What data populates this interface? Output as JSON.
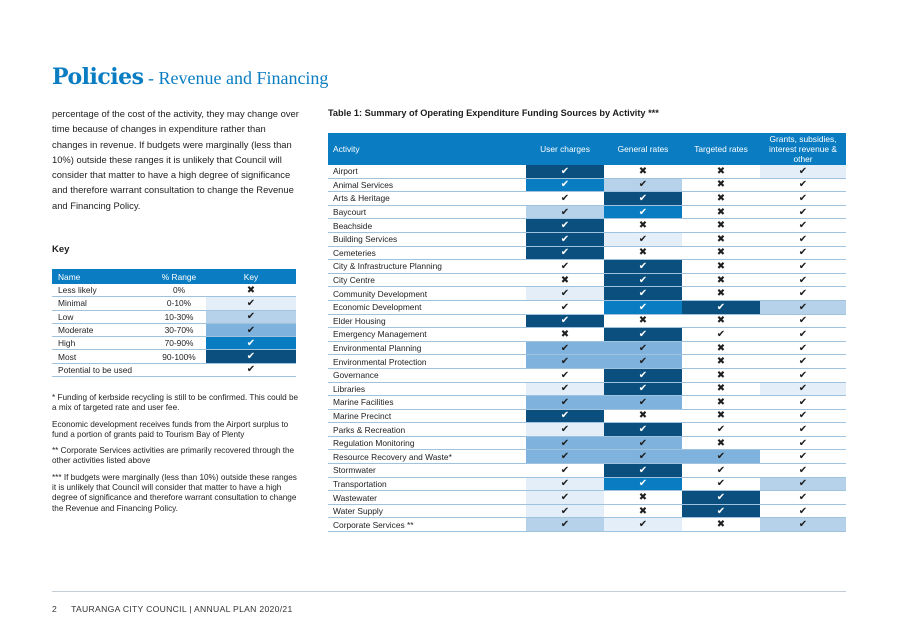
{
  "title": {
    "main": "Policies",
    "sub": " - Revenue and Financing"
  },
  "intro_text": "percentage of the cost of the activity, they may change over time because of changes in expenditure rather than changes in revenue. If budgets were marginally (less than 10%) outside these ranges it is unlikely that Council will consider that matter to have a high degree of significance and therefore warrant consultation to change the Revenue and Financing Policy.",
  "key": {
    "heading": "Key",
    "columns": [
      "Name",
      "% Range",
      "Key"
    ],
    "rows": [
      {
        "name": "Less likely",
        "range": "0%",
        "symbol": "✖",
        "level": "none"
      },
      {
        "name": "Minimal",
        "range": "0-10%",
        "symbol": "✔",
        "level": "minimal"
      },
      {
        "name": "Low",
        "range": "10-30%",
        "symbol": "✔",
        "level": "low"
      },
      {
        "name": "Moderate",
        "range": "30-70%",
        "symbol": "✔",
        "level": "moderate"
      },
      {
        "name": "High",
        "range": "70-90%",
        "symbol": "✔",
        "level": "high"
      },
      {
        "name": "Most",
        "range": "90-100%",
        "symbol": "✔",
        "level": "most"
      },
      {
        "name": "Potential to be used",
        "range": "",
        "symbol": "✔",
        "level": "none"
      }
    ]
  },
  "level_colors": {
    "none": "#ffffff",
    "minimal": "#e3eef8",
    "low": "#b5d2ea",
    "moderate": "#7fb3dd",
    "high": "#0a7dc2",
    "most": "#0b4f7f"
  },
  "notes": [
    "* Funding of kerbside recycling is still to be confirmed.  This could be a mix of targeted rate and user fee.",
    "Economic development receives funds from the Airport surplus to fund a portion of grants paid to Tourism Bay of Plenty",
    "** Corporate Services activities are primarily recovered through the other activities listed above",
    "*** If budgets were marginally (less than 10%) outside these ranges it is unlikely that Council will consider that matter to have a high degree of significance and therefore warrant consultation to change the Revenue and Financing Policy."
  ],
  "table": {
    "title": "Table 1: Summary of Operating Expenditure Funding Sources by Activity ***",
    "columns": [
      "Activity",
      "User charges",
      "General rates",
      "Targeted rates",
      "Grants, subsidies, interest revenue & other"
    ],
    "symbols": {
      "x": "✖",
      "none": "✔",
      "minimal": "✔",
      "low": "✔",
      "moderate": "✔",
      "high": "✔",
      "most": "✔"
    },
    "rows": [
      {
        "activity": "Airport",
        "levels": [
          "most",
          "x",
          "x",
          "minimal"
        ]
      },
      {
        "activity": "Animal Services",
        "levels": [
          "high",
          "low",
          "x",
          "none"
        ]
      },
      {
        "activity": "Arts & Heritage",
        "levels": [
          "none",
          "most",
          "x",
          "none"
        ]
      },
      {
        "activity": "Baycourt",
        "levels": [
          "low",
          "high",
          "x",
          "none"
        ]
      },
      {
        "activity": "Beachside",
        "levels": [
          "most",
          "x",
          "x",
          "none"
        ]
      },
      {
        "activity": "Building Services",
        "levels": [
          "most",
          "minimal",
          "x",
          "none"
        ]
      },
      {
        "activity": "Cemeteries",
        "levels": [
          "most",
          "x",
          "x",
          "none"
        ]
      },
      {
        "activity": "City & Infrastructure Planning",
        "levels": [
          "none",
          "most",
          "x",
          "none"
        ]
      },
      {
        "activity": "City Centre",
        "levels": [
          "x",
          "most",
          "x",
          "none"
        ]
      },
      {
        "activity": "Community Development",
        "levels": [
          "minimal",
          "most",
          "x",
          "none"
        ]
      },
      {
        "activity": "Economic Development",
        "levels": [
          "none",
          "high",
          "most",
          "low"
        ]
      },
      {
        "activity": "Elder Housing",
        "levels": [
          "most",
          "x",
          "x",
          "none"
        ]
      },
      {
        "activity": "Emergency Management",
        "levels": [
          "x",
          "most",
          "none",
          "none"
        ]
      },
      {
        "activity": "Environmental Planning",
        "levels": [
          "moderate",
          "moderate",
          "x",
          "none"
        ]
      },
      {
        "activity": "Environmental Protection",
        "levels": [
          "moderate",
          "moderate",
          "x",
          "none"
        ]
      },
      {
        "activity": "Governance",
        "levels": [
          "none",
          "most",
          "x",
          "none"
        ]
      },
      {
        "activity": "Libraries",
        "levels": [
          "minimal",
          "most",
          "x",
          "minimal"
        ]
      },
      {
        "activity": "Marine Facilities",
        "levels": [
          "moderate",
          "moderate",
          "x",
          "none"
        ]
      },
      {
        "activity": "Marine Precinct",
        "levels": [
          "most",
          "x",
          "x",
          "none"
        ]
      },
      {
        "activity": "Parks & Recreation",
        "levels": [
          "minimal",
          "most",
          "none",
          "none"
        ]
      },
      {
        "activity": "Regulation Monitoring",
        "levels": [
          "moderate",
          "moderate",
          "x",
          "none"
        ]
      },
      {
        "activity": "Resource Recovery and Waste*",
        "levels": [
          "moderate",
          "moderate",
          "moderate",
          "none"
        ]
      },
      {
        "activity": "Stormwater",
        "levels": [
          "none",
          "most",
          "none",
          "none"
        ]
      },
      {
        "activity": "Transportation",
        "levels": [
          "minimal",
          "high",
          "none",
          "low"
        ]
      },
      {
        "activity": "Wastewater",
        "levels": [
          "minimal",
          "x",
          "most",
          "none"
        ]
      },
      {
        "activity": "Water Supply",
        "levels": [
          "minimal",
          "x",
          "most",
          "none"
        ]
      },
      {
        "activity": "Corporate Services **",
        "levels": [
          "low",
          "minimal",
          "x",
          "low"
        ]
      }
    ]
  },
  "footer": {
    "page_number": "2",
    "text": "TAURANGA CITY COUNCIL  |  ANNUAL PLAN 2020/21"
  }
}
